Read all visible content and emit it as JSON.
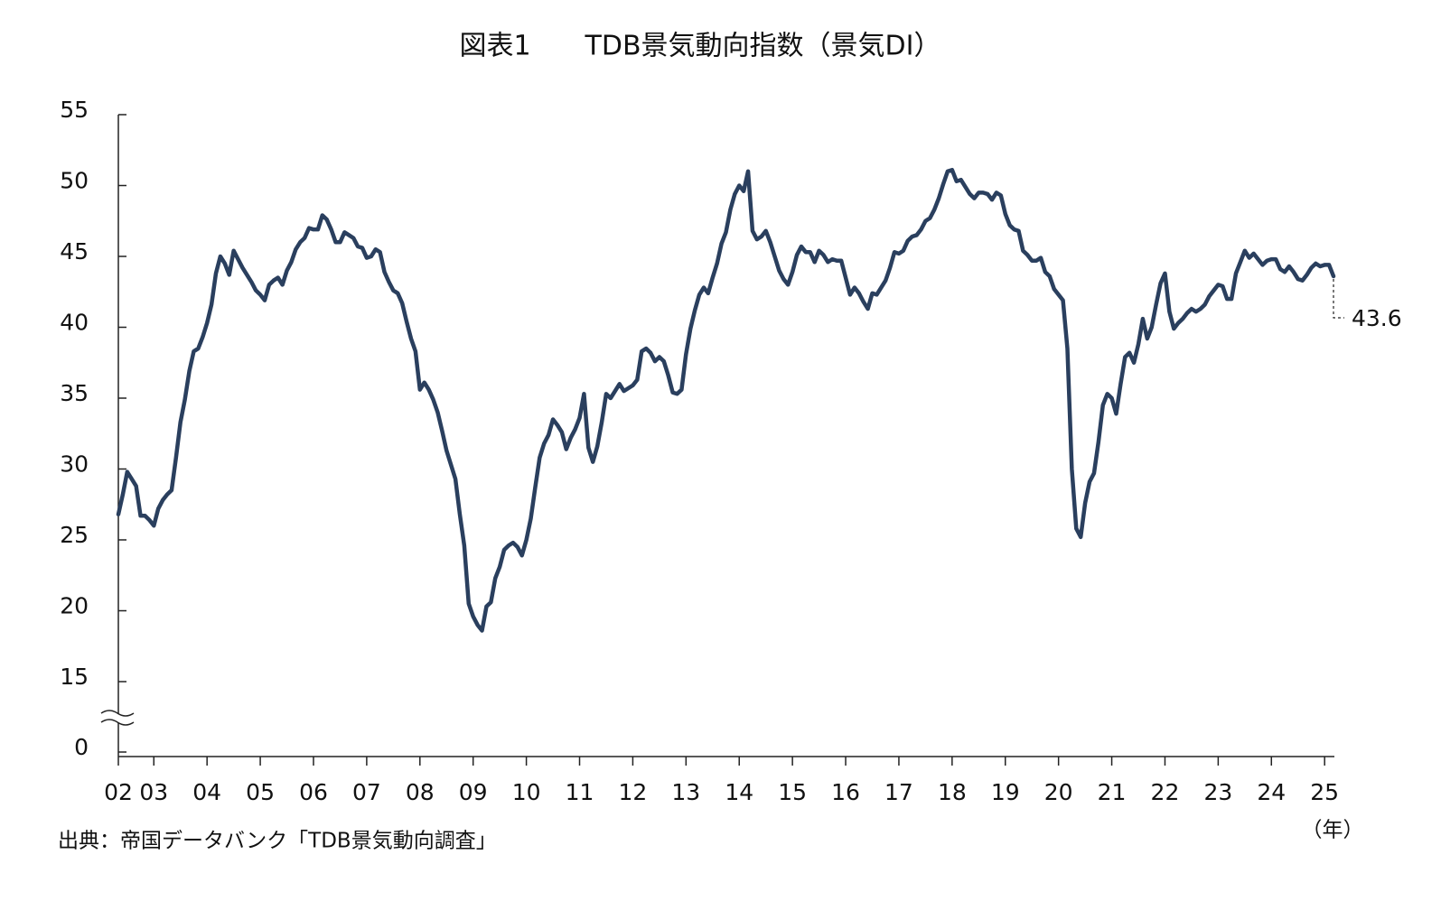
{
  "chart_data": {
    "type": "line",
    "title": "図表1　　TDB景気動向指数（景気DI）",
    "source": "出典：帝国データバンク「TDB景気動向調査」",
    "x_unit": "（年）",
    "color": "#2a3f5e",
    "grid": false,
    "ylim": [
      0,
      55
    ],
    "ybreak": [
      0,
      15
    ],
    "yticks": [
      0,
      15,
      20,
      25,
      30,
      35,
      40,
      45,
      50,
      55
    ],
    "categories": [
      "02",
      null,
      null,
      null,
      null,
      null,
      null,
      null,
      "03",
      null,
      null,
      null,
      null,
      null,
      null,
      null,
      null,
      null,
      null,
      null,
      "04",
      null,
      null,
      null,
      null,
      null,
      null,
      null,
      null,
      null,
      null,
      null,
      "05",
      null,
      null,
      null,
      null,
      null,
      null,
      null,
      null,
      null,
      null,
      null,
      "06",
      null,
      null,
      null,
      null,
      null,
      null,
      null,
      null,
      null,
      null,
      null,
      "07",
      null,
      null,
      null,
      null,
      null,
      null,
      null,
      null,
      null,
      null,
      null,
      "08",
      null,
      null,
      null,
      null,
      null,
      null,
      null,
      null,
      null,
      null,
      null,
      "09",
      null,
      null,
      null,
      null,
      null,
      null,
      null,
      null,
      null,
      null,
      null,
      "10",
      null,
      null,
      null,
      null,
      null,
      null,
      null,
      null,
      null,
      null,
      null,
      "11",
      null,
      null,
      null,
      null,
      null,
      null,
      null,
      null,
      null,
      null,
      null,
      "12",
      null,
      null,
      null,
      null,
      null,
      null,
      null,
      null,
      null,
      null,
      null,
      "13",
      null,
      null,
      null,
      null,
      null,
      null,
      null,
      null,
      null,
      null,
      null,
      "14",
      null,
      null,
      null,
      null,
      null,
      null,
      null,
      null,
      null,
      null,
      null,
      "15",
      null,
      null,
      null,
      null,
      null,
      null,
      null,
      null,
      null,
      null,
      null,
      "16",
      null,
      null,
      null,
      null,
      null,
      null,
      null,
      null,
      null,
      null,
      null,
      "17",
      null,
      null,
      null,
      null,
      null,
      null,
      null,
      null,
      null,
      null,
      null,
      "18",
      null,
      null,
      null,
      null,
      null,
      null,
      null,
      null,
      null,
      null,
      null,
      "19",
      null,
      null,
      null,
      null,
      null,
      null,
      null,
      null,
      null,
      null,
      null,
      "20",
      null,
      null,
      null,
      null,
      null,
      null,
      null,
      null,
      null,
      null,
      null,
      "21",
      null,
      null,
      null,
      null,
      null,
      null,
      null,
      null,
      null,
      null,
      null,
      "22",
      null,
      null,
      null,
      null,
      null,
      null,
      null,
      null,
      null,
      null,
      null,
      "23",
      null,
      null,
      null,
      null,
      null,
      null,
      null,
      null,
      null,
      null,
      null,
      "24",
      null,
      null,
      null,
      null,
      null,
      null,
      null,
      null,
      null,
      null,
      null,
      "25",
      null,
      null
    ],
    "values": [
      26.8,
      28.2,
      29.8,
      29.3,
      28.8,
      26.7,
      26.7,
      26.4,
      26.0,
      27.2,
      27.8,
      28.2,
      28.5,
      30.8,
      33.3,
      34.9,
      36.9,
      38.3,
      38.5,
      39.3,
      40.3,
      41.6,
      43.8,
      45.0,
      44.5,
      43.7,
      45.4,
      44.8,
      44.2,
      43.7,
      43.2,
      42.6,
      42.3,
      41.9,
      43.0,
      43.3,
      43.5,
      43.0,
      44.0,
      44.6,
      45.5,
      46.0,
      46.3,
      47.0,
      46.9,
      46.9,
      47.9,
      47.6,
      46.9,
      46.0,
      46.0,
      46.7,
      46.5,
      46.3,
      45.7,
      45.6,
      44.9,
      45.0,
      45.5,
      45.3,
      43.9,
      43.2,
      42.6,
      42.4,
      41.7,
      40.4,
      39.2,
      38.3,
      35.6,
      36.1,
      35.6,
      34.9,
      34.0,
      32.7,
      31.3,
      30.3,
      29.3,
      26.8,
      24.6,
      20.5,
      19.6,
      19.0,
      18.6,
      20.3,
      20.6,
      22.3,
      23.1,
      24.3,
      24.6,
      24.8,
      24.5,
      23.9,
      25.0,
      26.5,
      28.7,
      30.8,
      31.8,
      32.4,
      33.5,
      33.1,
      32.6,
      31.4,
      32.2,
      32.8,
      33.6,
      35.3,
      31.5,
      30.5,
      31.6,
      33.3,
      35.3,
      35.0,
      35.5,
      36.0,
      35.5,
      35.7,
      35.9,
      36.3,
      38.3,
      38.5,
      38.2,
      37.6,
      37.9,
      37.6,
      36.6,
      35.4,
      35.3,
      35.6,
      38.1,
      39.9,
      41.2,
      42.3,
      42.8,
      42.4,
      43.5,
      44.5,
      45.9,
      46.7,
      48.3,
      49.4,
      50.0,
      49.6,
      51.0,
      46.8,
      46.2,
      46.4,
      46.8,
      46.0,
      45.0,
      44.0,
      43.4,
      43.0,
      43.9,
      45.1,
      45.7,
      45.3,
      45.3,
      44.6,
      45.4,
      45.1,
      44.6,
      44.8,
      44.7,
      44.7,
      43.5,
      42.3,
      42.8,
      42.4,
      41.8,
      41.3,
      42.4,
      42.3,
      42.8,
      43.3,
      44.2,
      45.3,
      45.2,
      45.4,
      46.1,
      46.4,
      46.5,
      46.9,
      47.5,
      47.7,
      48.3,
      49.1,
      50.1,
      51.0,
      51.1,
      50.3,
      50.4,
      49.9,
      49.4,
      49.1,
      49.5,
      49.5,
      49.4,
      49.0,
      49.5,
      49.3,
      48.0,
      47.2,
      46.9,
      46.8,
      45.4,
      45.1,
      44.7,
      44.7,
      44.9,
      43.9,
      43.6,
      42.7,
      42.3,
      41.9,
      38.5,
      30.0,
      25.8,
      25.2,
      27.6,
      29.1,
      29.7,
      31.9,
      34.5,
      35.3,
      35.0,
      33.9,
      36.0,
      37.9,
      38.2,
      37.5,
      38.8,
      40.6,
      39.2,
      40.0,
      41.6,
      43.1,
      43.8,
      41.1,
      39.9,
      40.3,
      40.6,
      41.0,
      41.3,
      41.1,
      41.3,
      41.6,
      42.2,
      42.6,
      43.0,
      42.9,
      42.0,
      42.0,
      43.8,
      44.6,
      45.4,
      44.9,
      45.2,
      44.8,
      44.4,
      44.7,
      44.8,
      44.8,
      44.1,
      43.9,
      44.3,
      43.9,
      43.4,
      43.3,
      43.7,
      44.2,
      44.5,
      44.3,
      44.4,
      44.4,
      43.6
    ]
  }
}
